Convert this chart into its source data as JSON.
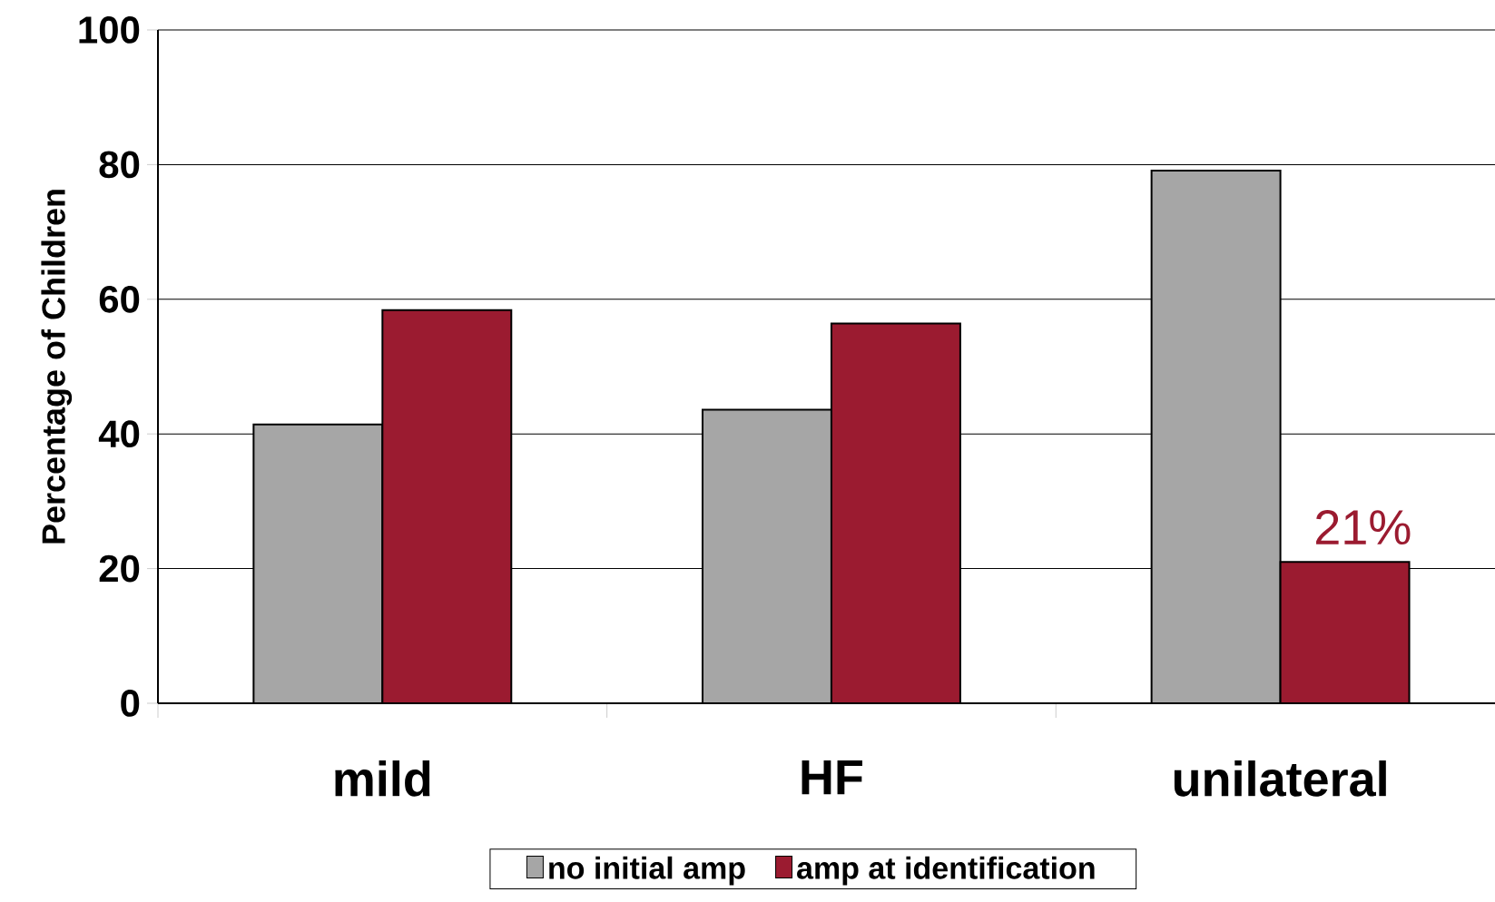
{
  "chart_data": {
    "type": "bar",
    "ylabel": "Percentage of Children",
    "categories": [
      "mild",
      "HF",
      "unilateral"
    ],
    "series": [
      {
        "name": "no initial amp",
        "color": "#a6a6a6",
        "values": [
          41.4,
          43.6,
          79.1
        ]
      },
      {
        "name": "amp at identification",
        "color": "#9b1b30",
        "values": [
          58.4,
          56.4,
          21
        ],
        "value_labels": [
          null,
          null,
          "21%"
        ]
      }
    ],
    "ylim": [
      0,
      100
    ],
    "yticks": [
      0,
      20,
      40,
      60,
      80,
      100
    ],
    "grid": "y",
    "legend": "bottom"
  }
}
